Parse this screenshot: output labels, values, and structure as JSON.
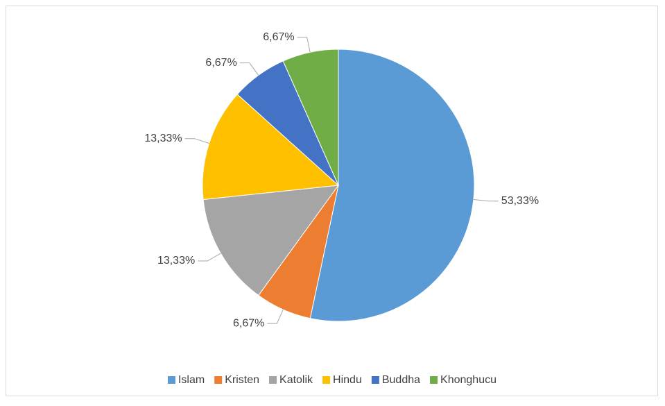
{
  "chart_data": {
    "type": "pie",
    "categories": [
      "Islam",
      "Kristen",
      "Katolik",
      "Hindu",
      "Buddha",
      "Khonghucu"
    ],
    "values": [
      53.33,
      6.67,
      13.33,
      13.33,
      6.67,
      6.67
    ],
    "value_labels": [
      "53,33%",
      "6,67%",
      "13,33%",
      "13,33%",
      "6,67%",
      "6,67%"
    ],
    "colors": [
      "#5b9bd5",
      "#ed7d31",
      "#a5a5a5",
      "#ffc000",
      "#4472c4",
      "#70ad47"
    ],
    "legend": "bottom"
  }
}
